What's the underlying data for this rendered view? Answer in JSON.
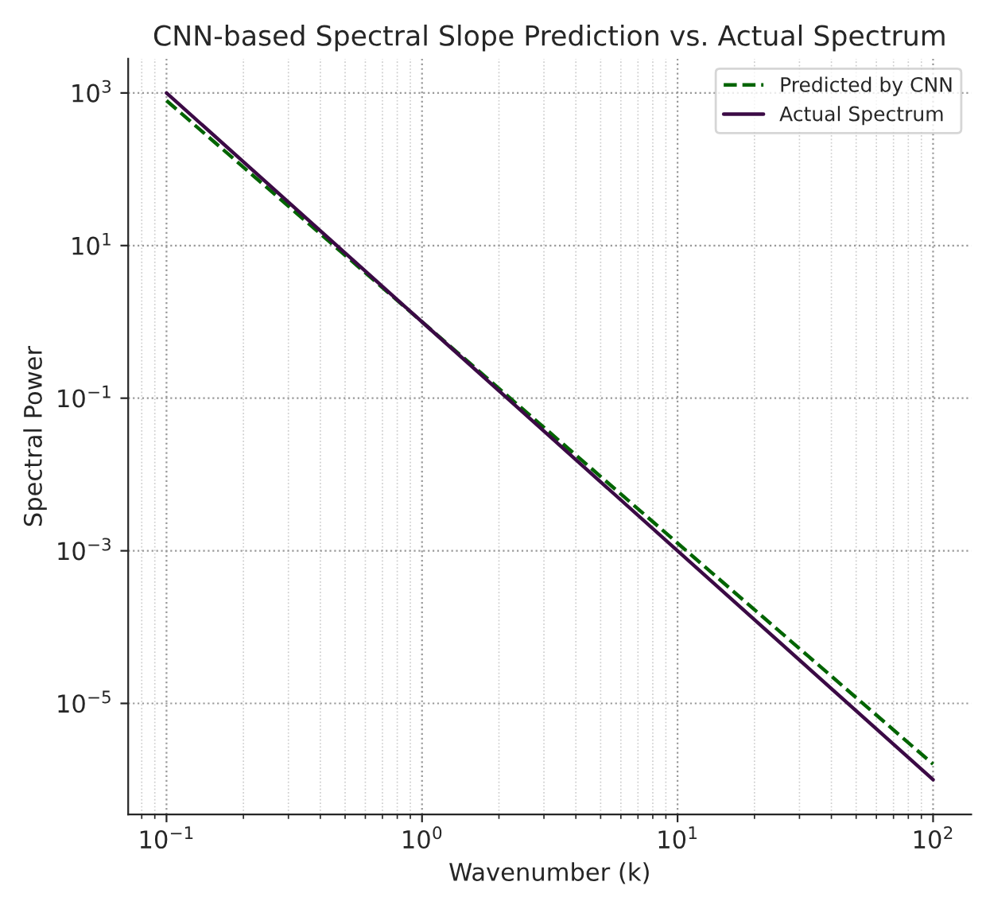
{
  "chart_data": {
    "type": "line",
    "title": "CNN-based Spectral Slope Prediction vs. Actual Spectrum",
    "xlabel": "Wavenumber (k)",
    "ylabel": "Spectral Power",
    "x": [
      0.1,
      1,
      10,
      100
    ],
    "series": [
      {
        "name": "Predicted by CNN",
        "color": "#006400",
        "line_style": "dashed",
        "values": [
          794,
          1,
          0.00126,
          1.6e-06
        ]
      },
      {
        "name": "Actual Spectrum",
        "color": "#3b0a45",
        "line_style": "solid",
        "values": [
          1000,
          1,
          0.001,
          1e-06
        ]
      }
    ],
    "log": "xy",
    "xlim": [
      0.0708,
      141
    ],
    "ylim": [
      3.5e-07,
      2800
    ],
    "xticks": [
      {
        "value": 0.1,
        "label": "10$^{−1}$"
      },
      {
        "value": 1,
        "label": "10$^{0}$"
      },
      {
        "value": 10,
        "label": "10$^{1}$"
      },
      {
        "value": 100,
        "label": "10$^{2}$"
      }
    ],
    "yticks": [
      {
        "value": 1e-05,
        "label": "10$^{−5}$"
      },
      {
        "value": 0.001,
        "label": "10$^{−3}$"
      },
      {
        "value": 0.1,
        "label": "10$^{−1}$"
      },
      {
        "value": 10,
        "label": "10$^{1}$"
      },
      {
        "value": 1000,
        "label": "10$^{3}$"
      }
    ],
    "grid": true,
    "legend": "top right",
    "marker": "none"
  }
}
